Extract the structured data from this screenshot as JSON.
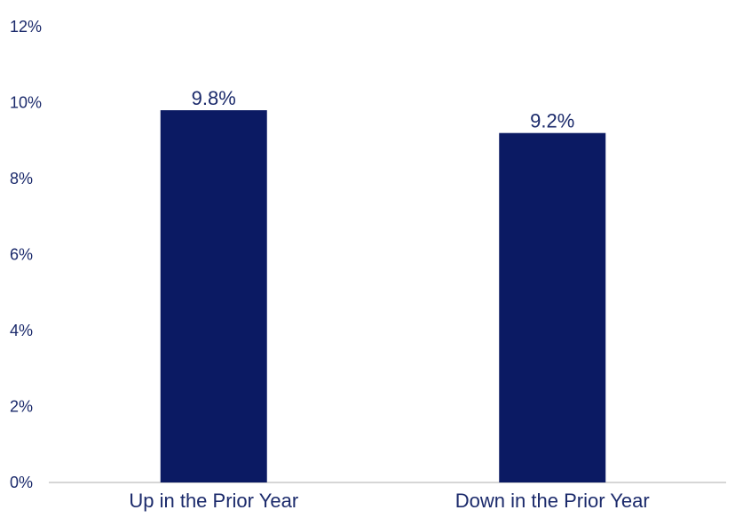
{
  "chart_data": {
    "type": "bar",
    "title": "",
    "xlabel": "",
    "ylabel": "",
    "categories": [
      "Up in the Prior Year",
      "Down in the Prior Year"
    ],
    "values": [
      9.8,
      9.2
    ],
    "data_labels": [
      "9.8%",
      "9.2%"
    ],
    "ylim": [
      0,
      12
    ],
    "yticks": [
      0,
      2,
      4,
      6,
      8,
      10,
      12
    ],
    "ytick_labels": [
      "0%",
      "2%",
      "4%",
      "6%",
      "8%",
      "10%",
      "12%"
    ],
    "grid": false,
    "legend": "none",
    "colors": {
      "bar": "#0b1a63",
      "text": "#1b2a6b",
      "axis": "#c8c8c8"
    }
  }
}
